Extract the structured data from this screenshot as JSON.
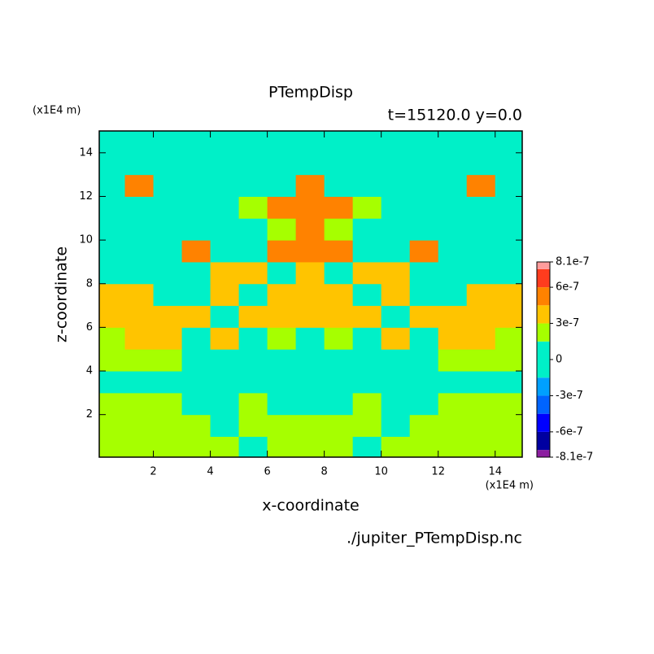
{
  "chart_data": {
    "type": "contour",
    "title": "PTempDisp",
    "subtitle": "t=15120.0 y=0.0",
    "x_label": "x-coordinate",
    "y_label": "z-coordinate",
    "x_unit": "(x1E4 m)",
    "y_unit": "(x1E4 m)",
    "source": "./jupiter_PTempDisp.nc",
    "xlim": [
      0.1,
      14.95
    ],
    "ylim": [
      0.05,
      15
    ],
    "xticks": [
      2,
      4,
      6,
      8,
      10,
      12,
      14
    ],
    "yticks": [
      2,
      4,
      6,
      8,
      10,
      12,
      14
    ],
    "x": [
      0.5,
      1.5,
      2.5,
      3.5,
      4.5,
      5.5,
      6.5,
      7.5,
      8.5,
      9.5,
      10.5,
      11.5,
      12.5,
      13.5,
      14.5
    ],
    "y": [
      0.5,
      1.5,
      2.5,
      3.5,
      4.5,
      5.5,
      6.5,
      7.5,
      8.5,
      9.5,
      10.5,
      11.5,
      12.5,
      13.5,
      14.5
    ],
    "z": [
      [
        2e-07,
        2e-07,
        2e-07,
        2e-07,
        2e-07,
        0,
        2e-07,
        2e-07,
        2e-07,
        0,
        2e-07,
        2e-07,
        2e-07,
        2e-07,
        2e-07
      ],
      [
        2e-07,
        2e-07,
        2e-07,
        2e-07,
        0,
        2e-07,
        2e-07,
        2e-07,
        2e-07,
        2e-07,
        0,
        2e-07,
        2e-07,
        2e-07,
        2e-07
      ],
      [
        2e-07,
        2e-07,
        2e-07,
        0,
        0,
        2e-07,
        0,
        0,
        0,
        2e-07,
        0,
        0,
        2e-07,
        2e-07,
        2e-07
      ],
      [
        0,
        0,
        0,
        0,
        0,
        0,
        0,
        0,
        0,
        0,
        0,
        0,
        0,
        0,
        0
      ],
      [
        2e-07,
        2e-07,
        2e-07,
        0,
        0,
        0,
        0,
        0,
        0,
        0,
        0,
        0,
        2e-07,
        2e-07,
        2e-07
      ],
      [
        2e-07,
        4e-07,
        4e-07,
        0,
        4e-07,
        0,
        2e-07,
        0,
        2e-07,
        0,
        4e-07,
        0,
        4e-07,
        4e-07,
        2e-07
      ],
      [
        4e-07,
        4e-07,
        4e-07,
        4e-07,
        0,
        4e-07,
        4e-07,
        4e-07,
        4e-07,
        4e-07,
        0,
        4e-07,
        4e-07,
        4e-07,
        4e-07
      ],
      [
        4e-07,
        4e-07,
        0,
        0,
        4e-07,
        0,
        4e-07,
        4e-07,
        4e-07,
        0,
        4e-07,
        0,
        0,
        4e-07,
        4e-07
      ],
      [
        0,
        0,
        0,
        0,
        4e-07,
        4e-07,
        0,
        4e-07,
        0,
        4e-07,
        4e-07,
        0,
        0,
        0,
        0
      ],
      [
        0,
        0,
        0,
        5e-07,
        0,
        0,
        5e-07,
        5e-07,
        5e-07,
        0,
        0,
        5e-07,
        0,
        0,
        0
      ],
      [
        0,
        0,
        0,
        0,
        0,
        0,
        2e-07,
        5e-07,
        2e-07,
        0,
        0,
        0,
        0,
        0,
        0
      ],
      [
        0,
        0,
        0,
        0,
        0,
        2e-07,
        5e-07,
        5e-07,
        5e-07,
        2e-07,
        0,
        0,
        0,
        0,
        0
      ],
      [
        0,
        5e-07,
        0,
        0,
        0,
        0,
        0,
        5e-07,
        0,
        0,
        0,
        0,
        0,
        5e-07,
        0
      ],
      [
        0,
        0,
        0,
        0,
        0,
        0,
        0,
        0,
        0,
        0,
        0,
        0,
        0,
        0,
        0
      ],
      [
        0,
        0,
        0,
        0,
        0,
        0,
        0,
        0,
        0,
        0,
        0,
        0,
        0,
        0,
        0
      ]
    ],
    "levels": [
      -8.1e-07,
      -7.5e-07,
      -6e-07,
      -4.5e-07,
      -3e-07,
      -1.5e-07,
      1.5e-07,
      3e-07,
      4.5e-07,
      6e-07,
      7.5e-07,
      8.1e-07
    ],
    "colors": [
      "#8c1ea0",
      "#0000a0",
      "#0000ff",
      "#0064ff",
      "#00a0ff",
      "#00f0c8",
      "#a6ff00",
      "#ffc400",
      "#ff8200",
      "#ff3c1e",
      "#ff9c9c"
    ],
    "colorbar_ticks": [
      8.1e-07,
      6e-07,
      3e-07,
      0,
      -3e-07,
      -6e-07,
      -8.1e-07
    ]
  }
}
